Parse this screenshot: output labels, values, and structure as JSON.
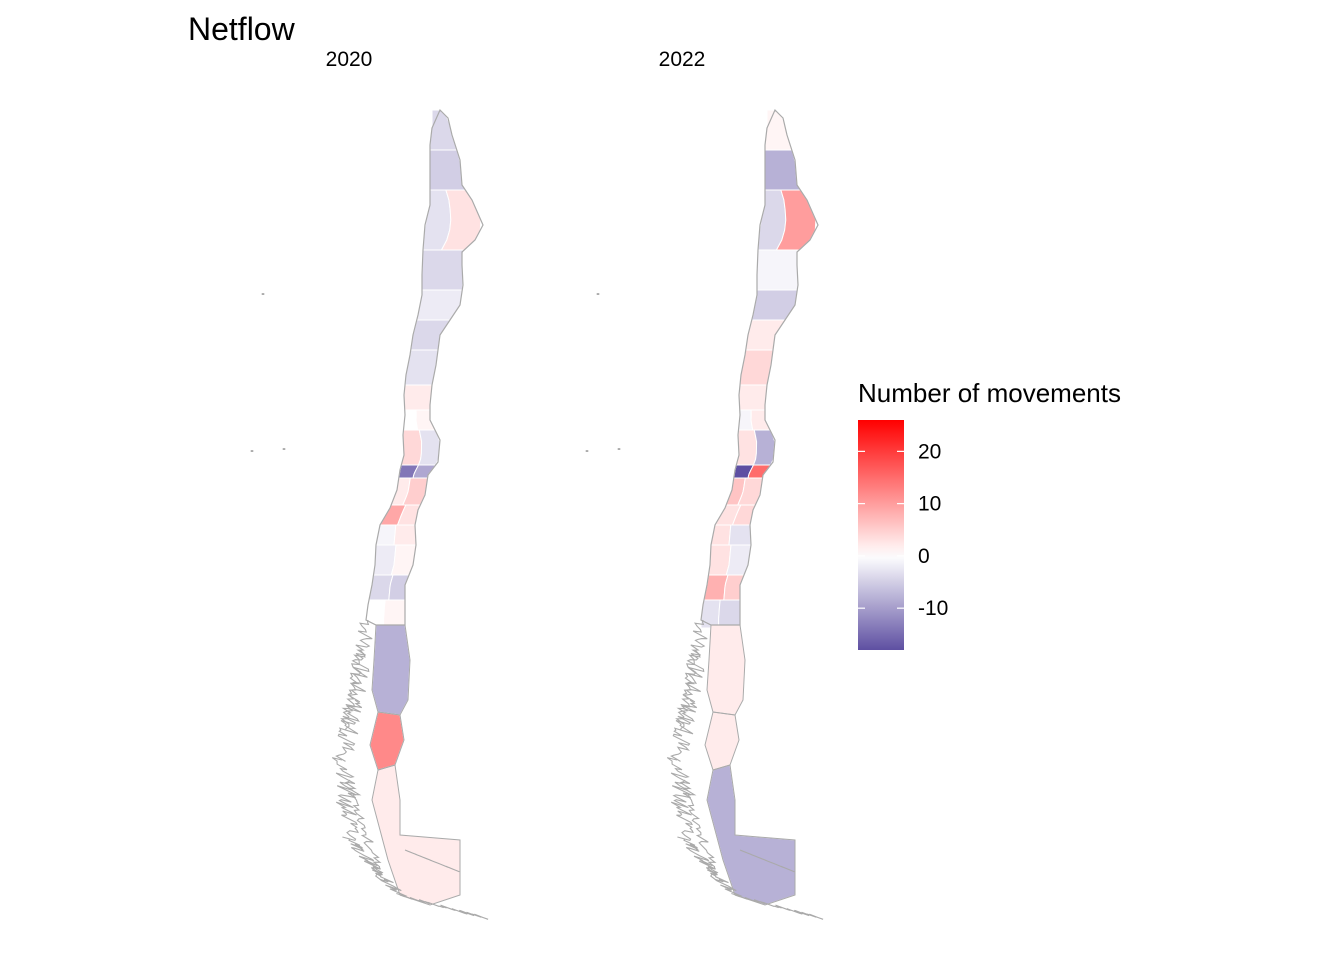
{
  "title": "Netflow",
  "panels": [
    {
      "label": "2020",
      "regions": [
        {
          "value": -4
        },
        {
          "value": -5
        },
        {
          "value": -3
        },
        {
          "value": 3
        },
        {
          "value": -4
        },
        {
          "value": -2
        },
        {
          "value": -4
        },
        {
          "value": -3
        },
        {
          "value": 2
        },
        {
          "value": 0
        },
        {
          "value": 1
        },
        {
          "value": 4
        },
        {
          "value": -3
        },
        {
          "value": -14
        },
        {
          "value": -9
        },
        {
          "value": 2
        },
        {
          "value": 5
        },
        {
          "value": 9
        },
        {
          "value": 3
        },
        {
          "value": -1
        },
        {
          "value": 2
        },
        {
          "value": -2
        },
        {
          "value": 1
        },
        {
          "value": -4
        },
        {
          "value": -5
        },
        {
          "value": 0
        },
        {
          "value": 1
        },
        {
          "value": -8
        },
        {
          "value": 12
        },
        {
          "value": 2
        },
        {
          "value": 1
        },
        {
          "value": 3
        },
        {
          "value": -1
        },
        {
          "value": 2
        },
        {
          "value": 0
        },
        {
          "value": 1
        },
        {
          "value": 2
        },
        {
          "value": 0
        },
        {
          "value": 2
        }
      ]
    },
    {
      "label": "2022",
      "regions": [
        {
          "value": 1
        },
        {
          "value": -8
        },
        {
          "value": -4
        },
        {
          "value": 10
        },
        {
          "value": -1
        },
        {
          "value": -5
        },
        {
          "value": 2
        },
        {
          "value": 4
        },
        {
          "value": 2
        },
        {
          "value": -1
        },
        {
          "value": 2
        },
        {
          "value": 3
        },
        {
          "value": -8
        },
        {
          "value": -18
        },
        {
          "value": 15
        },
        {
          "value": 6
        },
        {
          "value": 4
        },
        {
          "value": 3
        },
        {
          "value": 4
        },
        {
          "value": 3
        },
        {
          "value": -3
        },
        {
          "value": 3
        },
        {
          "value": -2
        },
        {
          "value": 8
        },
        {
          "value": 5
        },
        {
          "value": -3
        },
        {
          "value": -4
        },
        {
          "value": 2
        },
        {
          "value": 2
        },
        {
          "value": -8
        },
        {
          "value": -3
        },
        {
          "value": -2
        },
        {
          "value": 2
        },
        {
          "value": -4
        },
        {
          "value": -3
        },
        {
          "value": -2
        },
        {
          "value": -3
        },
        {
          "value": 1
        },
        {
          "value": -7
        }
      ]
    }
  ],
  "legend": {
    "title": "Number of movements",
    "min": -18,
    "max": 26,
    "ticks": [
      20,
      10,
      0,
      -10
    ],
    "colors": {
      "low": "#5e4fa2",
      "mid": "#ffffff",
      "high": "#ff0000"
    }
  },
  "colors": {
    "border": "#aaaaaa",
    "inner_border": "#ffffff",
    "background": "#ffffff"
  }
}
